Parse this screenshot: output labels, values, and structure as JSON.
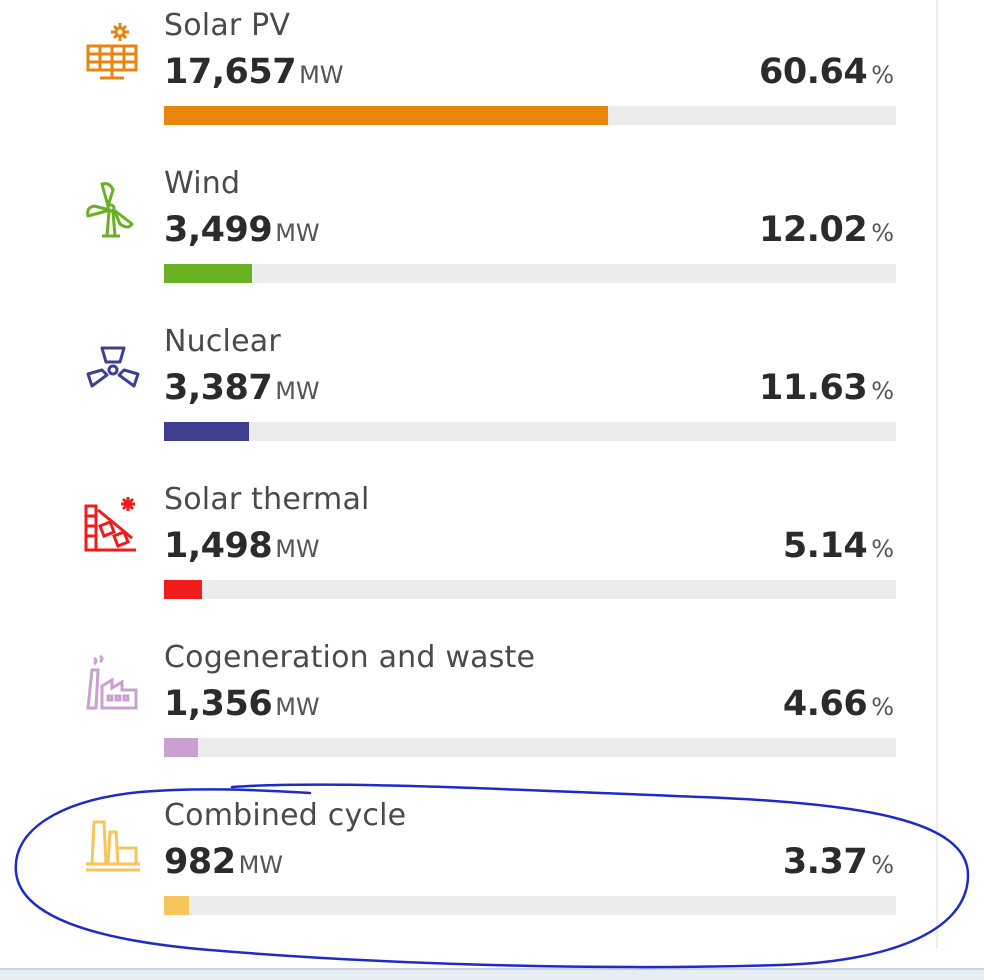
{
  "unit_mw": "MW",
  "unit_pct": "%",
  "items": [
    {
      "label": "Solar PV",
      "mw": "17,657",
      "pct": "60.64",
      "share": 0.6064,
      "color": "#e8850c",
      "icon": "solar-panel-icon"
    },
    {
      "label": "Wind",
      "mw": "3,499",
      "pct": "12.02",
      "share": 0.1202,
      "color": "#6ab023",
      "icon": "wind-turbine-icon"
    },
    {
      "label": "Nuclear",
      "mw": "3,387",
      "pct": "11.63",
      "share": 0.1163,
      "color": "#3f3f8f",
      "icon": "nuclear-icon"
    },
    {
      "label": "Solar thermal",
      "mw": "1,498",
      "pct": "5.14",
      "share": 0.0514,
      "color": "#ee1c1c",
      "icon": "solar-thermal-icon"
    },
    {
      "label": "Cogeneration and waste",
      "mw": "1,356",
      "pct": "4.66",
      "share": 0.0466,
      "color": "#c9a0cf",
      "icon": "factory-icon"
    },
    {
      "label": "Combined cycle",
      "mw": "982",
      "pct": "3.37",
      "share": 0.0337,
      "color": "#f7c65a",
      "icon": "combined-cycle-plant-icon"
    }
  ],
  "annotation_color": "#1f2bc9"
}
